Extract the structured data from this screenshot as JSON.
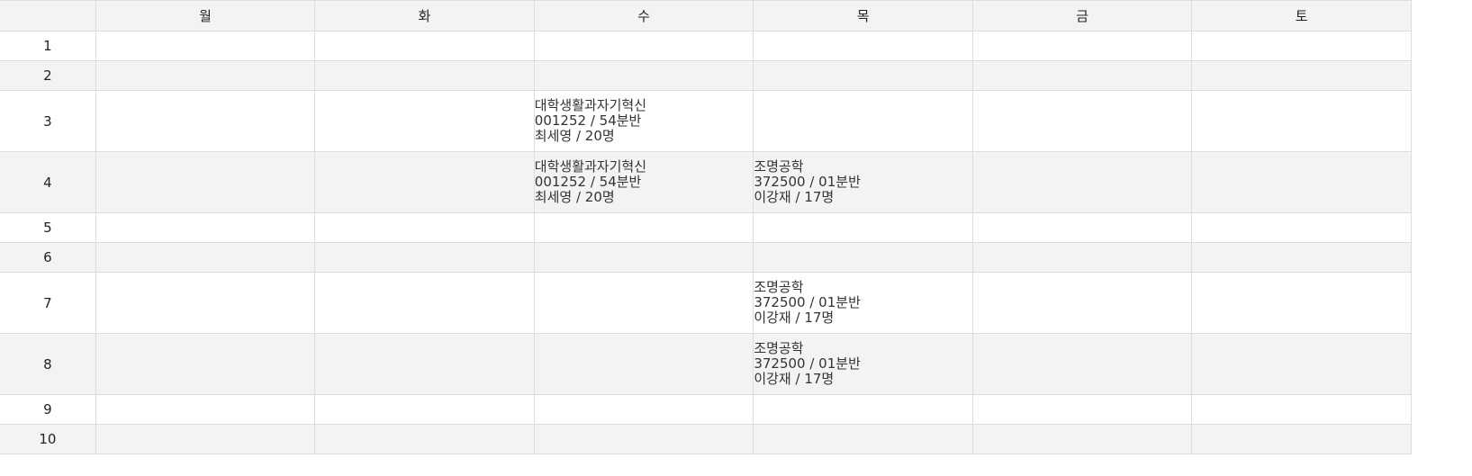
{
  "days": [
    "월",
    "화",
    "수",
    "목",
    "금",
    "토"
  ],
  "rows": [
    {
      "period": "1",
      "cells": [
        null,
        null,
        null,
        null,
        null,
        null
      ]
    },
    {
      "period": "2",
      "cells": [
        null,
        null,
        null,
        null,
        null,
        null
      ]
    },
    {
      "period": "3",
      "cells": [
        null,
        null,
        {
          "name": "대학생활과자기혁신",
          "code": "001252 / 54분반",
          "teacher": "최세영 / 20명"
        },
        null,
        null,
        null
      ]
    },
    {
      "period": "4",
      "cells": [
        null,
        null,
        {
          "name": "대학생활과자기혁신",
          "code": "001252 / 54분반",
          "teacher": "최세영 / 20명"
        },
        {
          "name": "조명공학",
          "code": "372500 / 01분반",
          "teacher": "이강재 / 17명"
        },
        null,
        null
      ]
    },
    {
      "period": "5",
      "cells": [
        null,
        null,
        null,
        null,
        null,
        null
      ]
    },
    {
      "period": "6",
      "cells": [
        null,
        null,
        null,
        null,
        null,
        null
      ]
    },
    {
      "period": "7",
      "cells": [
        null,
        null,
        null,
        {
          "name": "조명공학",
          "code": "372500 / 01분반",
          "teacher": "이강재 / 17명"
        },
        null,
        null
      ]
    },
    {
      "period": "8",
      "cells": [
        null,
        null,
        null,
        {
          "name": "조명공학",
          "code": "372500 / 01분반",
          "teacher": "이강재 / 17명"
        },
        null,
        null
      ]
    },
    {
      "period": "9",
      "cells": [
        null,
        null,
        null,
        null,
        null,
        null
      ]
    },
    {
      "period": "10",
      "cells": [
        null,
        null,
        null,
        null,
        null,
        null
      ]
    }
  ]
}
